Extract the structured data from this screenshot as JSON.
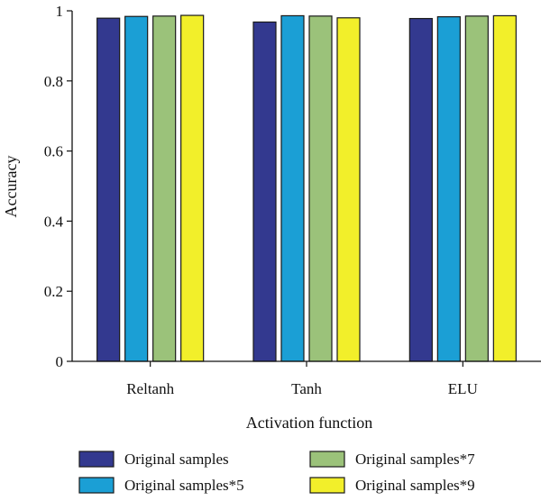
{
  "chart_data": {
    "type": "bar",
    "title": "",
    "xlabel": "Activation function",
    "ylabel": "Accuracy",
    "ylim": [
      0,
      1
    ],
    "yticks": [
      0,
      0.2,
      0.4,
      0.6,
      0.8,
      1
    ],
    "ytick_labels": [
      "0",
      "0.2",
      "0.4",
      "0.6",
      "0.8",
      "1"
    ],
    "categories": [
      "Reltanh",
      "Tanh",
      "ELU"
    ],
    "grid": false,
    "legend_position": "bottom",
    "series": [
      {
        "name": "Original samples",
        "color": "#33398f",
        "values": [
          0.979,
          0.968,
          0.978
        ]
      },
      {
        "name": "Original samples*5",
        "color": "#1b9fd5",
        "values": [
          0.984,
          0.986,
          0.983
        ]
      },
      {
        "name": "Original samples*7",
        "color": "#9bc27a",
        "values": [
          0.985,
          0.985,
          0.985
        ]
      },
      {
        "name": "Original samples*9",
        "color": "#f2ef2a",
        "values": [
          0.987,
          0.98,
          0.986
        ]
      }
    ]
  }
}
